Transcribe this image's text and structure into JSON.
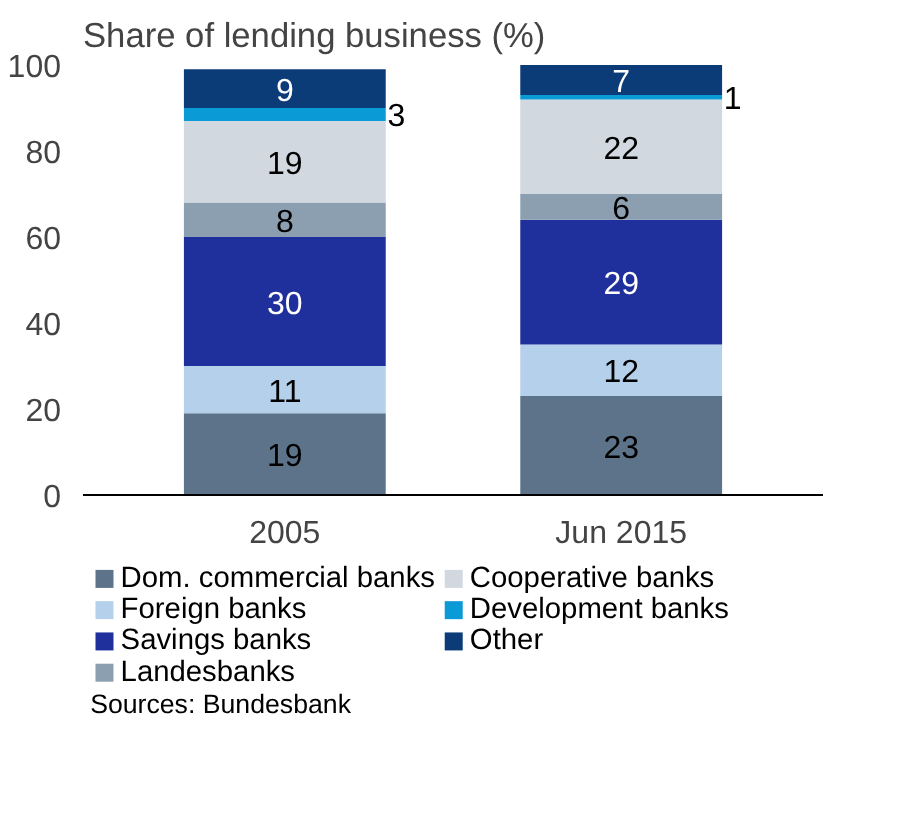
{
  "chart_data": {
    "type": "bar",
    "stacked": true,
    "title": "Share of lending business (%)",
    "categories": [
      "2005",
      "Jun 2015"
    ],
    "series": [
      {
        "name": "Dom. commercial banks",
        "color": "#5c7389",
        "values": [
          19,
          23
        ]
      },
      {
        "name": "Foreign banks",
        "color": "#b5d0ea",
        "values": [
          11,
          12
        ]
      },
      {
        "name": "Savings banks",
        "color": "#1f2f9c",
        "values": [
          30,
          29
        ]
      },
      {
        "name": "Landesbanks",
        "color": "#8c9fb0",
        "values": [
          8,
          6
        ]
      },
      {
        "name": "Cooperative banks",
        "color": "#d1d8e0",
        "values": [
          19,
          22
        ]
      },
      {
        "name": "Development banks",
        "color": "#0a9ad6",
        "values": [
          3,
          1
        ]
      },
      {
        "name": "Other",
        "color": "#0b3c78",
        "values": [
          9,
          7
        ]
      }
    ],
    "ylim": [
      0,
      100
    ],
    "yticks": [
      0,
      20,
      40,
      60,
      80,
      100
    ],
    "data_labels": true,
    "legend": "bottom",
    "grid": false,
    "annotations": [
      "Sources: Bundesbank"
    ]
  }
}
